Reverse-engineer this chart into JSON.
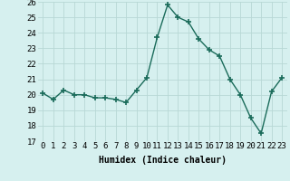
{
  "x": [
    0,
    1,
    2,
    3,
    4,
    5,
    6,
    7,
    8,
    9,
    10,
    11,
    12,
    13,
    14,
    15,
    16,
    17,
    18,
    19,
    20,
    21,
    22,
    23
  ],
  "y": [
    20.1,
    19.7,
    20.3,
    20.0,
    20.0,
    19.8,
    19.8,
    19.7,
    19.5,
    20.3,
    21.1,
    23.7,
    25.8,
    25.0,
    24.7,
    23.6,
    22.9,
    22.5,
    21.0,
    20.0,
    18.5,
    17.5,
    20.2,
    21.1
  ],
  "line_color": "#1a6b5a",
  "marker": "+",
  "marker_size": 4,
  "bg_color": "#d6f0ef",
  "grid_color": "#b8d8d5",
  "xlabel": "Humidex (Indice chaleur)",
  "xlim": [
    -0.5,
    23.5
  ],
  "ylim": [
    17,
    26
  ],
  "yticks": [
    17,
    18,
    19,
    20,
    21,
    22,
    23,
    24,
    25,
    26
  ],
  "xtick_labels": [
    "0",
    "1",
    "2",
    "3",
    "4",
    "5",
    "6",
    "7",
    "8",
    "9",
    "10",
    "11",
    "12",
    "13",
    "14",
    "15",
    "16",
    "17",
    "18",
    "19",
    "20",
    "21",
    "22",
    "23"
  ],
  "xlabel_fontsize": 7,
  "tick_fontsize": 6.5,
  "line_width": 1.0,
  "marker_thickness": 1.2
}
